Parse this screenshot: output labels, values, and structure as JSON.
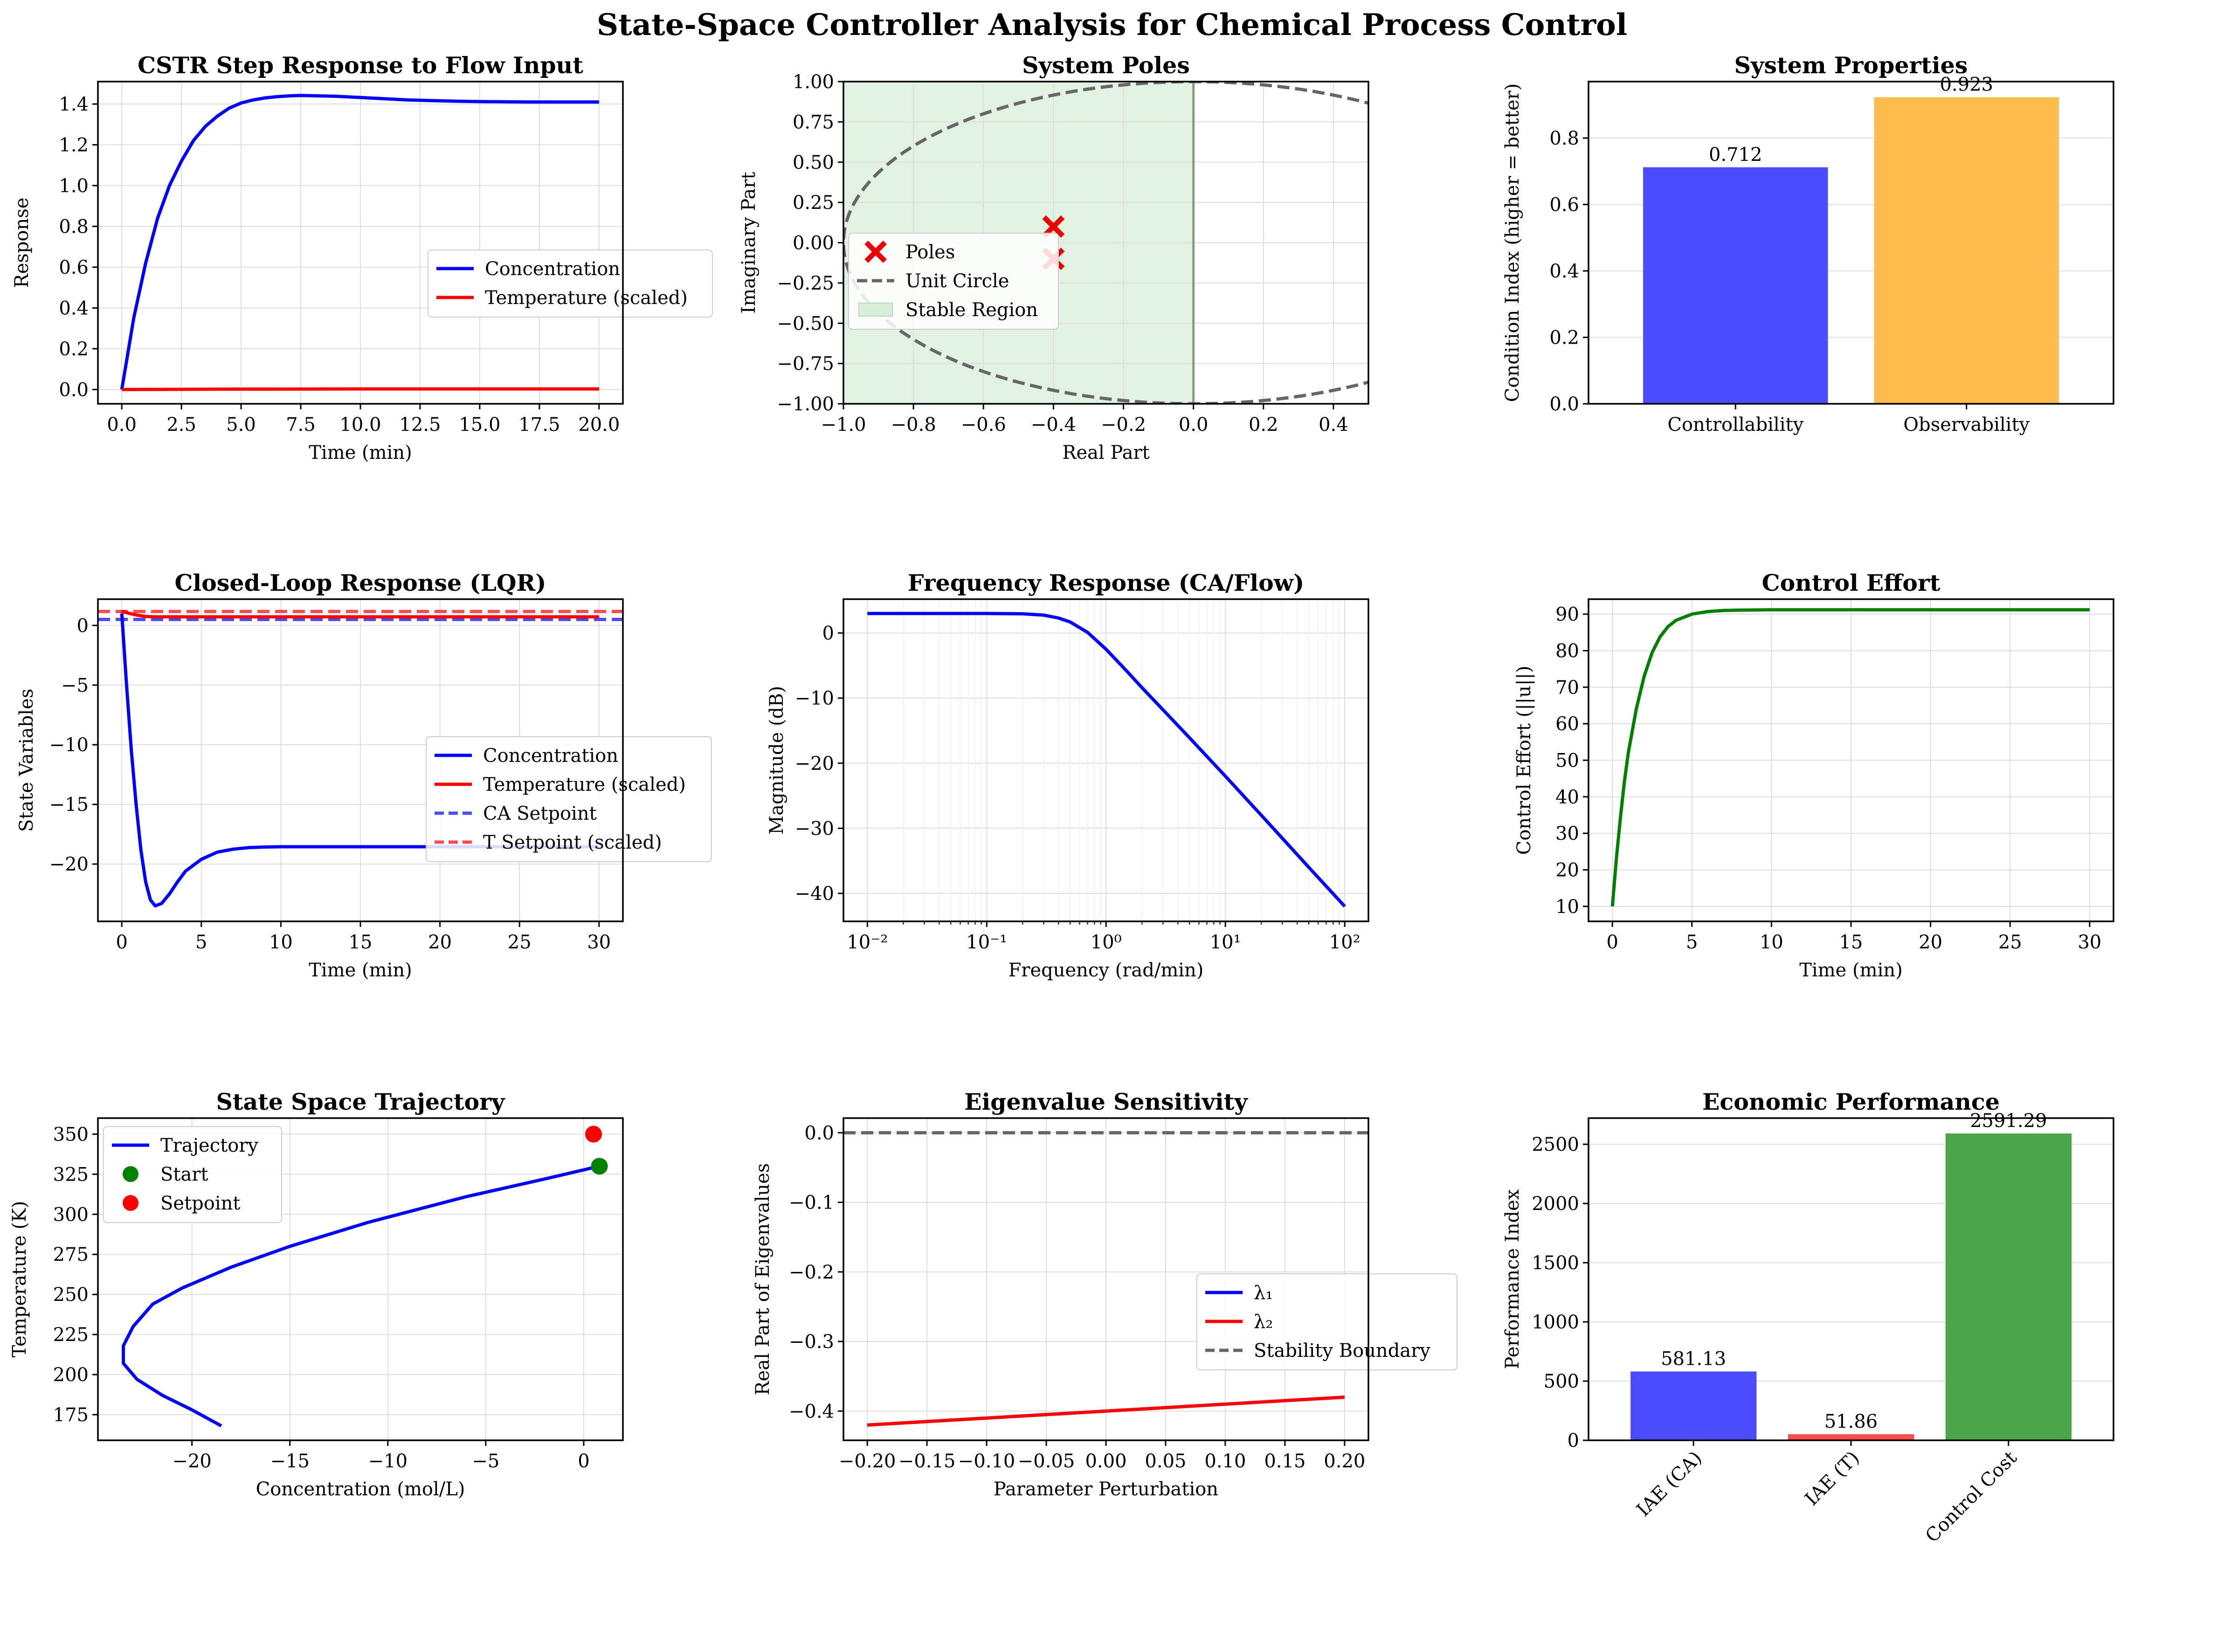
{
  "suptitle": "State-Space Controller Analysis for Chemical Process Control",
  "colors": {
    "blue": "#0000ff",
    "red": "#ff0000",
    "green": "#007f00",
    "gray": "#555555",
    "grid": "#dddddd",
    "stable_fill": "#d8eed8",
    "bar_blue": "#4b4bff",
    "bar_orange": "#ffbe4b",
    "bar_red": "#ff4b4b",
    "bar_green": "#4ba64b"
  },
  "chart_data": [
    {
      "id": "p1",
      "type": "line",
      "title": "CSTR Step Response to Flow Input",
      "xlabel": "Time (min)",
      "ylabel": "Response",
      "xlim": [
        -1,
        21
      ],
      "ylim": [
        -0.07,
        1.51
      ],
      "xticks": [
        0,
        2.5,
        5,
        7.5,
        10,
        12.5,
        15,
        17.5,
        20
      ],
      "xticklabels": [
        "0.0",
        "2.5",
        "5.0",
        "7.5",
        "10.0",
        "12.5",
        "15.0",
        "17.5",
        "20.0"
      ],
      "yticks": [
        0,
        0.2,
        0.4,
        0.6,
        0.8,
        1.0,
        1.2,
        1.4
      ],
      "yticklabels": [
        "0.0",
        "0.2",
        "0.4",
        "0.6",
        "0.8",
        "1.0",
        "1.2",
        "1.4"
      ],
      "grid": true,
      "legend": "center-right",
      "series": [
        {
          "name": "Concentration",
          "color": "#0000ff",
          "points": [
            [
              0,
              0
            ],
            [
              0.5,
              0.35
            ],
            [
              1,
              0.62
            ],
            [
              1.5,
              0.84
            ],
            [
              2,
              1.0
            ],
            [
              2.5,
              1.12
            ],
            [
              3,
              1.22
            ],
            [
              3.5,
              1.29
            ],
            [
              4,
              1.34
            ],
            [
              4.5,
              1.38
            ],
            [
              5,
              1.405
            ],
            [
              5.5,
              1.42
            ],
            [
              6,
              1.43
            ],
            [
              6.5,
              1.436
            ],
            [
              7,
              1.44
            ],
            [
              7.5,
              1.442
            ],
            [
              8,
              1.441
            ],
            [
              9,
              1.438
            ],
            [
              10,
              1.432
            ],
            [
              11,
              1.426
            ],
            [
              12,
              1.42
            ],
            [
              13,
              1.417
            ],
            [
              14,
              1.414
            ],
            [
              15,
              1.412
            ],
            [
              16,
              1.411
            ],
            [
              17,
              1.41
            ],
            [
              18,
              1.41
            ],
            [
              19,
              1.41
            ],
            [
              20,
              1.41
            ]
          ]
        },
        {
          "name": "Temperature (scaled)",
          "color": "#ff0000",
          "points": [
            [
              0,
              0
            ],
            [
              5,
              0.002
            ],
            [
              10,
              0.003
            ],
            [
              15,
              0.003
            ],
            [
              20,
              0.003
            ]
          ]
        }
      ]
    },
    {
      "id": "p2",
      "type": "scatter",
      "title": "System Poles",
      "xlabel": "Real Part",
      "ylabel": "Imaginary Part",
      "xlim": [
        -1.0,
        0.5
      ],
      "ylim": [
        -1.0,
        1.0
      ],
      "xticks": [
        -1.0,
        -0.8,
        -0.6,
        -0.4,
        -0.2,
        0.0,
        0.2,
        0.4
      ],
      "xticklabels": [
        "−1.0",
        "−0.8",
        "−0.6",
        "−0.4",
        "−0.2",
        "0.0",
        "0.2",
        "0.4"
      ],
      "yticks": [
        -1.0,
        -0.75,
        -0.5,
        -0.25,
        0.0,
        0.25,
        0.5,
        0.75,
        1.0
      ],
      "yticklabels": [
        "−1.00",
        "−0.75",
        "−0.50",
        "−0.25",
        "0.00",
        "0.25",
        "0.50",
        "0.75",
        "1.00"
      ],
      "grid": true,
      "legend": "center-left",
      "poles": [
        [
          -0.4,
          0.1
        ],
        [
          -0.4,
          -0.1
        ]
      ],
      "stable_region": [
        -1.0,
        0.0
      ],
      "legend_entries": [
        "Poles",
        "Unit Circle",
        "Stable Region"
      ]
    },
    {
      "id": "p3",
      "type": "bar",
      "title": "System Properties",
      "xlabel": "",
      "ylabel": "Condition Index (higher = better)",
      "ylim": [
        0,
        0.97
      ],
      "yticks": [
        0,
        0.2,
        0.4,
        0.6,
        0.8
      ],
      "yticklabels": [
        "0.0",
        "0.2",
        "0.4",
        "0.6",
        "0.8"
      ],
      "categories": [
        "Controllability",
        "Observability"
      ],
      "values": [
        0.712,
        0.923
      ],
      "value_labels": [
        "0.712",
        "0.923"
      ],
      "bar_colors": [
        "#4b4bff",
        "#ffbe4b"
      ],
      "grid": true
    },
    {
      "id": "p4",
      "type": "line",
      "title": "Closed-Loop Response (LQR)",
      "xlabel": "Time (min)",
      "ylabel": "State Variables",
      "xlim": [
        -1.5,
        31.5
      ],
      "ylim": [
        -24.8,
        2.2
      ],
      "xticks": [
        0,
        5,
        10,
        15,
        20,
        25,
        30
      ],
      "xticklabels": [
        "0",
        "5",
        "10",
        "15",
        "20",
        "25",
        "30"
      ],
      "yticks": [
        -20,
        -15,
        -10,
        -5,
        0
      ],
      "yticklabels": [
        "−20",
        "−15",
        "−10",
        "−5",
        "0"
      ],
      "grid": true,
      "legend": "center-right",
      "series": [
        {
          "name": "Concentration",
          "color": "#0000ff",
          "points": [
            [
              0,
              1.0
            ],
            [
              0.3,
              -5
            ],
            [
              0.6,
              -10.5
            ],
            [
              0.9,
              -15
            ],
            [
              1.2,
              -18.8
            ],
            [
              1.5,
              -21.5
            ],
            [
              1.8,
              -23
            ],
            [
              2.1,
              -23.5
            ],
            [
              2.5,
              -23.3
            ],
            [
              3,
              -22.5
            ],
            [
              3.5,
              -21.5
            ],
            [
              4,
              -20.6
            ],
            [
              5,
              -19.6
            ],
            [
              6,
              -19.0
            ],
            [
              7,
              -18.75
            ],
            [
              8,
              -18.62
            ],
            [
              9,
              -18.57
            ],
            [
              10,
              -18.55
            ],
            [
              15,
              -18.55
            ],
            [
              20,
              -18.55
            ],
            [
              25,
              -18.55
            ],
            [
              30,
              -18.55
            ]
          ]
        },
        {
          "name": "Temperature (scaled)",
          "color": "#ff0000",
          "points": [
            [
              0,
              1.17
            ],
            [
              0.5,
              1.0
            ],
            [
              1,
              0.85
            ],
            [
              1.5,
              0.75
            ],
            [
              2,
              0.72
            ],
            [
              3,
              0.72
            ],
            [
              5,
              0.72
            ],
            [
              10,
              0.72
            ],
            [
              20,
              0.72
            ],
            [
              30,
              0.72
            ]
          ]
        }
      ],
      "setpoints": [
        {
          "name": "CA Setpoint",
          "color": "#4b4bff",
          "value": 0.5
        },
        {
          "name": "T Setpoint (scaled)",
          "color": "#ff4b4b",
          "value": 1.17
        }
      ]
    },
    {
      "id": "p5",
      "type": "line",
      "title": "Frequency Response (CA/Flow)",
      "xlabel": "Frequency (rad/min)",
      "ylabel": "Magnitude (dB)",
      "xscale": "log",
      "xlim": [
        0.0063,
        158
      ],
      "ylim": [
        -44.3,
        5.2
      ],
      "xticks": [
        0.01,
        0.1,
        1,
        10,
        100
      ],
      "xticklabels": [
        "10⁻²",
        "10⁻¹",
        "10⁰",
        "10¹",
        "10²"
      ],
      "yticks": [
        -40,
        -30,
        -20,
        -10,
        0
      ],
      "yticklabels": [
        "−40",
        "−30",
        "−20",
        "−10",
        "0"
      ],
      "grid": true,
      "series": [
        {
          "name": "",
          "color": "#0000ff",
          "points": [
            [
              0.01,
              3.0
            ],
            [
              0.05,
              3.0
            ],
            [
              0.1,
              3.0
            ],
            [
              0.2,
              2.95
            ],
            [
              0.3,
              2.75
            ],
            [
              0.4,
              2.3
            ],
            [
              0.5,
              1.7
            ],
            [
              0.7,
              0.1
            ],
            [
              1.0,
              -2.5
            ],
            [
              1.5,
              -5.9
            ],
            [
              2,
              -8.4
            ],
            [
              3,
              -11.8
            ],
            [
              5,
              -16.1
            ],
            [
              10,
              -22.0
            ],
            [
              20,
              -28.0
            ],
            [
              50,
              -36.0
            ],
            [
              100,
              -42.0
            ]
          ]
        }
      ]
    },
    {
      "id": "p6",
      "type": "line",
      "title": "Control Effort",
      "xlabel": "Time (min)",
      "ylabel": "Control Effort (||u||)",
      "xlim": [
        -1.5,
        31.5
      ],
      "ylim": [
        5.9,
        94.1
      ],
      "xticks": [
        0,
        5,
        10,
        15,
        20,
        25,
        30
      ],
      "xticklabels": [
        "0",
        "5",
        "10",
        "15",
        "20",
        "25",
        "30"
      ],
      "yticks": [
        10,
        20,
        30,
        40,
        50,
        60,
        70,
        80,
        90
      ],
      "yticklabels": [
        "10",
        "20",
        "30",
        "40",
        "50",
        "60",
        "70",
        "80",
        "90"
      ],
      "grid": true,
      "series": [
        {
          "name": "",
          "color": "#007f00",
          "points": [
            [
              0,
              10
            ],
            [
              0.25,
              23
            ],
            [
              0.5,
              34
            ],
            [
              0.75,
              44
            ],
            [
              1,
              52
            ],
            [
              1.5,
              64
            ],
            [
              2,
              73
            ],
            [
              2.5,
              79.5
            ],
            [
              3,
              83.8
            ],
            [
              3.5,
              86.6
            ],
            [
              4,
              88.3
            ],
            [
              5,
              90.0
            ],
            [
              6,
              90.7
            ],
            [
              7,
              91.0
            ],
            [
              8,
              91.1
            ],
            [
              10,
              91.2
            ],
            [
              15,
              91.2
            ],
            [
              20,
              91.2
            ],
            [
              25,
              91.2
            ],
            [
              30,
              91.2
            ]
          ]
        }
      ]
    },
    {
      "id": "p7",
      "type": "line",
      "title": "State Space Trajectory",
      "xlabel": "Concentration (mol/L)",
      "ylabel": "Temperature (K)",
      "xlim": [
        -24.8,
        2.0
      ],
      "ylim": [
        159,
        360
      ],
      "xticks": [
        -20,
        -15,
        -10,
        -5,
        0
      ],
      "xticklabels": [
        "−20",
        "−15",
        "−10",
        "−5",
        "0"
      ],
      "yticks": [
        175,
        200,
        225,
        250,
        275,
        300,
        325,
        350
      ],
      "yticklabels": [
        "175",
        "200",
        "225",
        "250",
        "275",
        "300",
        "325",
        "350"
      ],
      "grid": true,
      "legend": "top-left",
      "series": [
        {
          "name": "Trajectory",
          "color": "#0000ff",
          "points": [
            [
              0.8,
              330
            ],
            [
              -2,
              322
            ],
            [
              -6,
              311
            ],
            [
              -11,
              295
            ],
            [
              -15,
              280
            ],
            [
              -18,
              267
            ],
            [
              -20.5,
              254
            ],
            [
              -22,
              244
            ],
            [
              -23,
              230
            ],
            [
              -23.5,
              218
            ],
            [
              -23.5,
              207
            ],
            [
              -22.8,
              197
            ],
            [
              -21.5,
              187
            ],
            [
              -20,
              178
            ],
            [
              -18.5,
              168
            ]
          ]
        }
      ],
      "markers": [
        {
          "name": "Start",
          "color": "#007f00",
          "x": 0.8,
          "y": 330
        },
        {
          "name": "Setpoint",
          "color": "#ff0000",
          "x": 0.5,
          "y": 350
        }
      ]
    },
    {
      "id": "p8",
      "type": "line",
      "title": "Eigenvalue Sensitivity",
      "xlabel": "Parameter Perturbation",
      "ylabel": "Real Part of Eigenvalues",
      "xlim": [
        -0.22,
        0.22
      ],
      "ylim": [
        -0.442,
        0.021
      ],
      "xticks": [
        -0.2,
        -0.15,
        -0.1,
        -0.05,
        0.0,
        0.05,
        0.1,
        0.15,
        0.2
      ],
      "xticklabels": [
        "−0.20",
        "−0.15",
        "−0.10",
        "−0.05",
        "0.00",
        "0.05",
        "0.10",
        "0.15",
        "0.20"
      ],
      "yticks": [
        -0.4,
        -0.3,
        -0.2,
        -0.1,
        0.0
      ],
      "yticklabels": [
        "−0.4",
        "−0.3",
        "−0.2",
        "−0.1",
        "0.0"
      ],
      "grid": true,
      "legend": "center-right",
      "series": [
        {
          "name": "λ₁",
          "color": "#0000ff",
          "points": [
            [
              -0.2,
              -0.42
            ],
            [
              0.2,
              -0.38
            ]
          ]
        },
        {
          "name": "λ₂",
          "color": "#ff0000",
          "points": [
            [
              -0.2,
              -0.42
            ],
            [
              0.2,
              -0.38
            ]
          ]
        }
      ],
      "boundary": {
        "name": "Stability Boundary",
        "value": 0.0
      }
    },
    {
      "id": "p9",
      "type": "bar",
      "title": "Economic Performance",
      "xlabel": "",
      "ylabel": "Performance Index",
      "ylim": [
        0,
        2721
      ],
      "yticks": [
        0,
        500,
        1000,
        1500,
        2000,
        2500
      ],
      "yticklabels": [
        "0",
        "500",
        "1000",
        "1500",
        "2000",
        "2500"
      ],
      "categories": [
        "IAE (CA)",
        "IAE (T)",
        "Control Cost"
      ],
      "values": [
        581.13,
        51.86,
        2591.29
      ],
      "value_labels": [
        "581.13",
        "51.86",
        "2591.29"
      ],
      "bar_colors": [
        "#4b4bff",
        "#ff4b4b",
        "#4ba64b"
      ],
      "grid": true,
      "rotate_xticks": true
    }
  ]
}
